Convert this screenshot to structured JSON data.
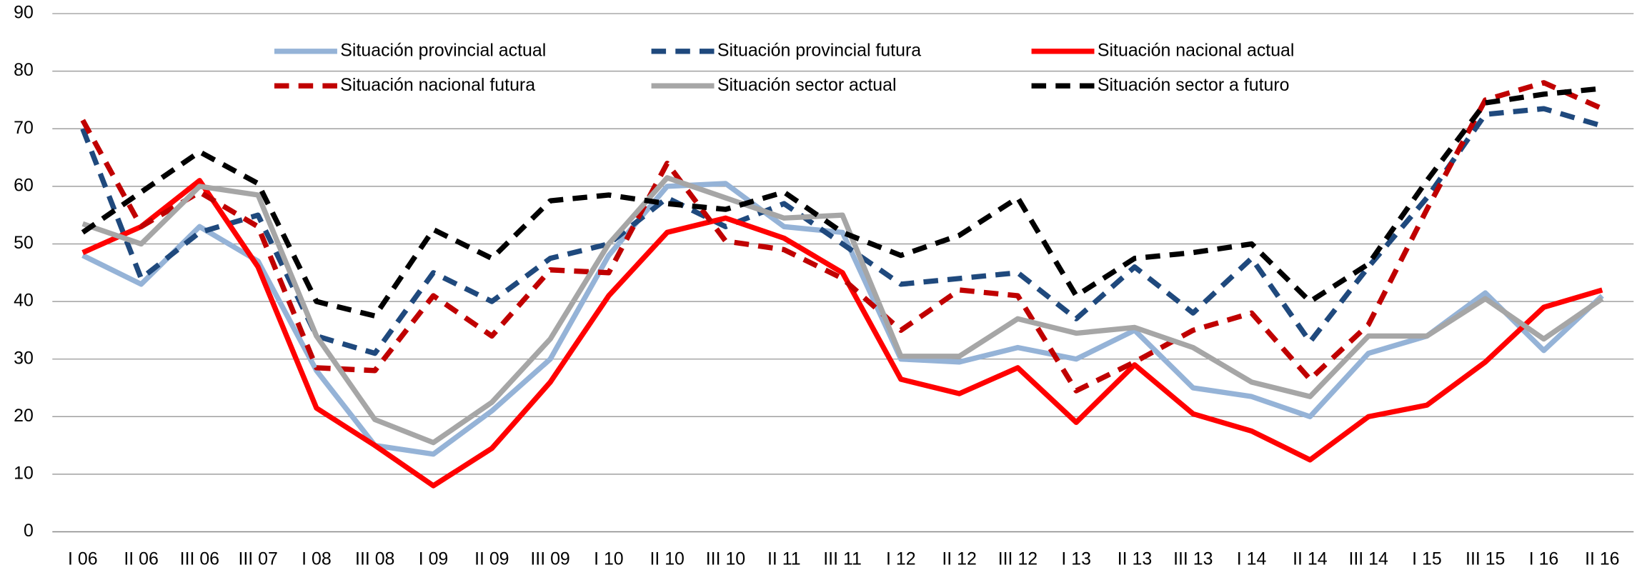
{
  "chart_data": {
    "type": "line",
    "categories": [
      "I 06",
      "II 06",
      "III 06",
      "III 07",
      "I 08",
      "III 08",
      "I 09",
      "II 09",
      "III 09",
      "I 10",
      "II 10",
      "III 10",
      "II 11",
      "III 11",
      "I 12",
      "II 12",
      "III 12",
      "I 13",
      "II 13",
      "III 13",
      "I 14",
      "II 14",
      "III 14",
      "I 15",
      "III 15",
      "I 16",
      "II 16"
    ],
    "ylim": [
      0,
      90
    ],
    "yticks": [
      0,
      10,
      20,
      30,
      40,
      50,
      60,
      70,
      80,
      90
    ],
    "grid": true,
    "series": [
      {
        "name": "Situación provincial actual",
        "color": "#95b3d7",
        "dashed": false,
        "values": [
          48,
          43,
          53,
          47,
          28,
          15,
          13.5,
          21,
          30,
          48,
          60,
          60.5,
          53,
          52,
          30,
          29.5,
          32,
          30,
          35,
          25,
          23.5,
          20,
          31,
          34,
          41.5,
          31.5,
          41
        ]
      },
      {
        "name": "Situación provincial futura",
        "color": "#1f497d",
        "dashed": true,
        "values": [
          70,
          44,
          52,
          55,
          34,
          31,
          45,
          40,
          47.5,
          50,
          58,
          53,
          57,
          50,
          43,
          44,
          45,
          37,
          46,
          38,
          47.5,
          33,
          46,
          58,
          72.5,
          73.5,
          70.5
        ]
      },
      {
        "name": "Situación nacional actual",
        "color": "#ff0000",
        "dashed": false,
        "values": [
          48.5,
          53,
          61,
          46,
          21.5,
          15,
          8,
          14.5,
          26,
          41,
          52,
          54.5,
          51,
          45,
          26.5,
          24,
          28.5,
          19,
          29,
          20.5,
          17.5,
          12.5,
          20,
          22,
          29.5,
          39,
          42
        ]
      },
      {
        "name": "Situación nacional futura",
        "color": "#c00000",
        "dashed": true,
        "values": [
          71.5,
          53,
          59,
          53,
          28.5,
          28,
          41,
          34,
          45.5,
          45,
          64,
          50.5,
          49,
          44,
          35,
          42,
          41,
          24.5,
          29.5,
          35,
          38,
          26.5,
          36,
          56,
          75,
          78,
          73.5
        ]
      },
      {
        "name": "Situación sector actual",
        "color": "#a6a6a6",
        "dashed": false,
        "values": [
          53.5,
          50,
          60,
          58.5,
          34,
          19.5,
          15.5,
          22.5,
          33.5,
          50,
          61.5,
          58,
          54.5,
          55,
          30.5,
          30.5,
          37,
          34.5,
          35.5,
          32,
          26,
          23.5,
          34,
          34,
          40.5,
          33.5,
          40.5
        ]
      },
      {
        "name": "Situación sector a futuro",
        "color": "#000000",
        "dashed": true,
        "values": [
          52,
          59,
          66,
          60.5,
          40,
          37.5,
          52.5,
          47.5,
          57.5,
          58.5,
          57,
          56,
          59,
          52,
          48,
          51.5,
          58,
          41,
          47.5,
          48.5,
          50,
          40,
          46.5,
          61,
          74.5,
          76,
          77
        ]
      }
    ]
  }
}
